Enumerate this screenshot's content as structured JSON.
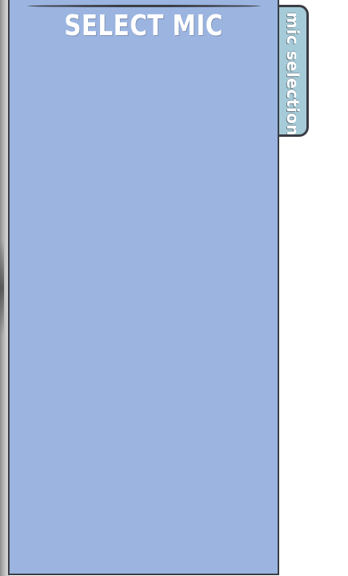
{
  "panel": {
    "title": "SELECT MIC",
    "background": "#9bb4e0",
    "border_color": "#3a3d44"
  },
  "side_tab": {
    "label": "mic selection",
    "background": "#a6cbd8"
  },
  "mic_list": []
}
